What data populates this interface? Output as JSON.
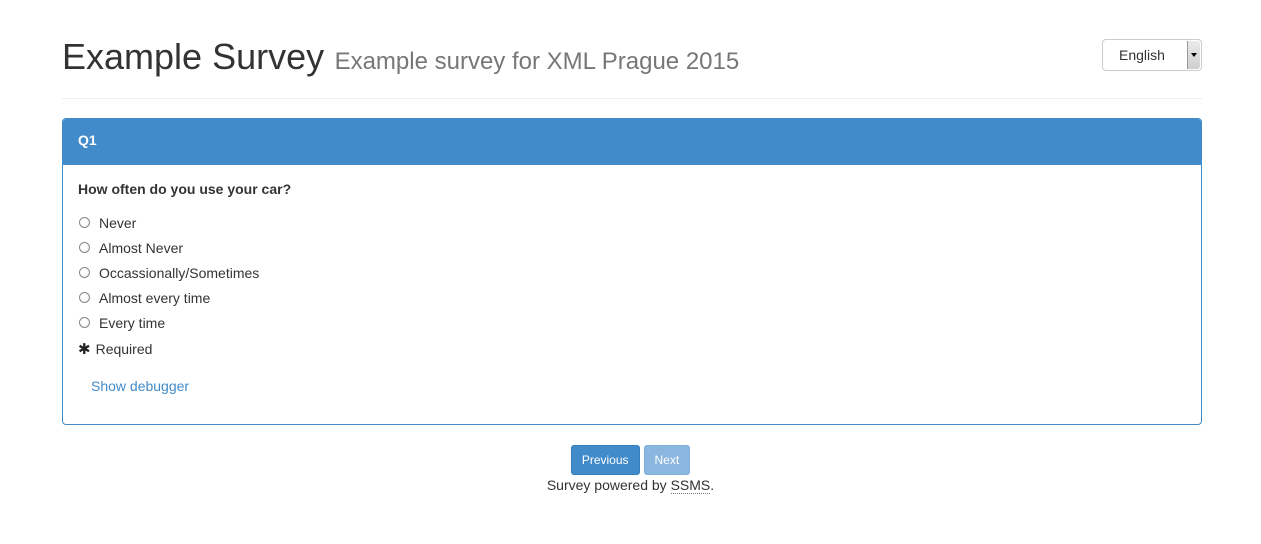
{
  "header": {
    "title": "Example Survey",
    "subtitle": "Example survey for XML Prague 2015"
  },
  "language_select": {
    "selected": "English",
    "icon": "dropdown-arrow-icon"
  },
  "panel": {
    "heading": "Q1",
    "question": "How often do you use your car?",
    "options": [
      "Never",
      "Almost Never",
      "Occassionally/Sometimes",
      "Almost every time",
      "Every time"
    ],
    "required_icon": "asterisk-icon",
    "required_label": "Required",
    "debugger_link": "Show debugger"
  },
  "navigation": {
    "previous_label": "Previous",
    "next_label": "Next"
  },
  "footer": {
    "prefix": "Survey powered by ",
    "link": "SSMS",
    "suffix": "."
  },
  "colors": {
    "primary": "#428bca",
    "primary_disabled": "#8ab6e0",
    "text": "#333333",
    "subtitle": "#777777"
  }
}
